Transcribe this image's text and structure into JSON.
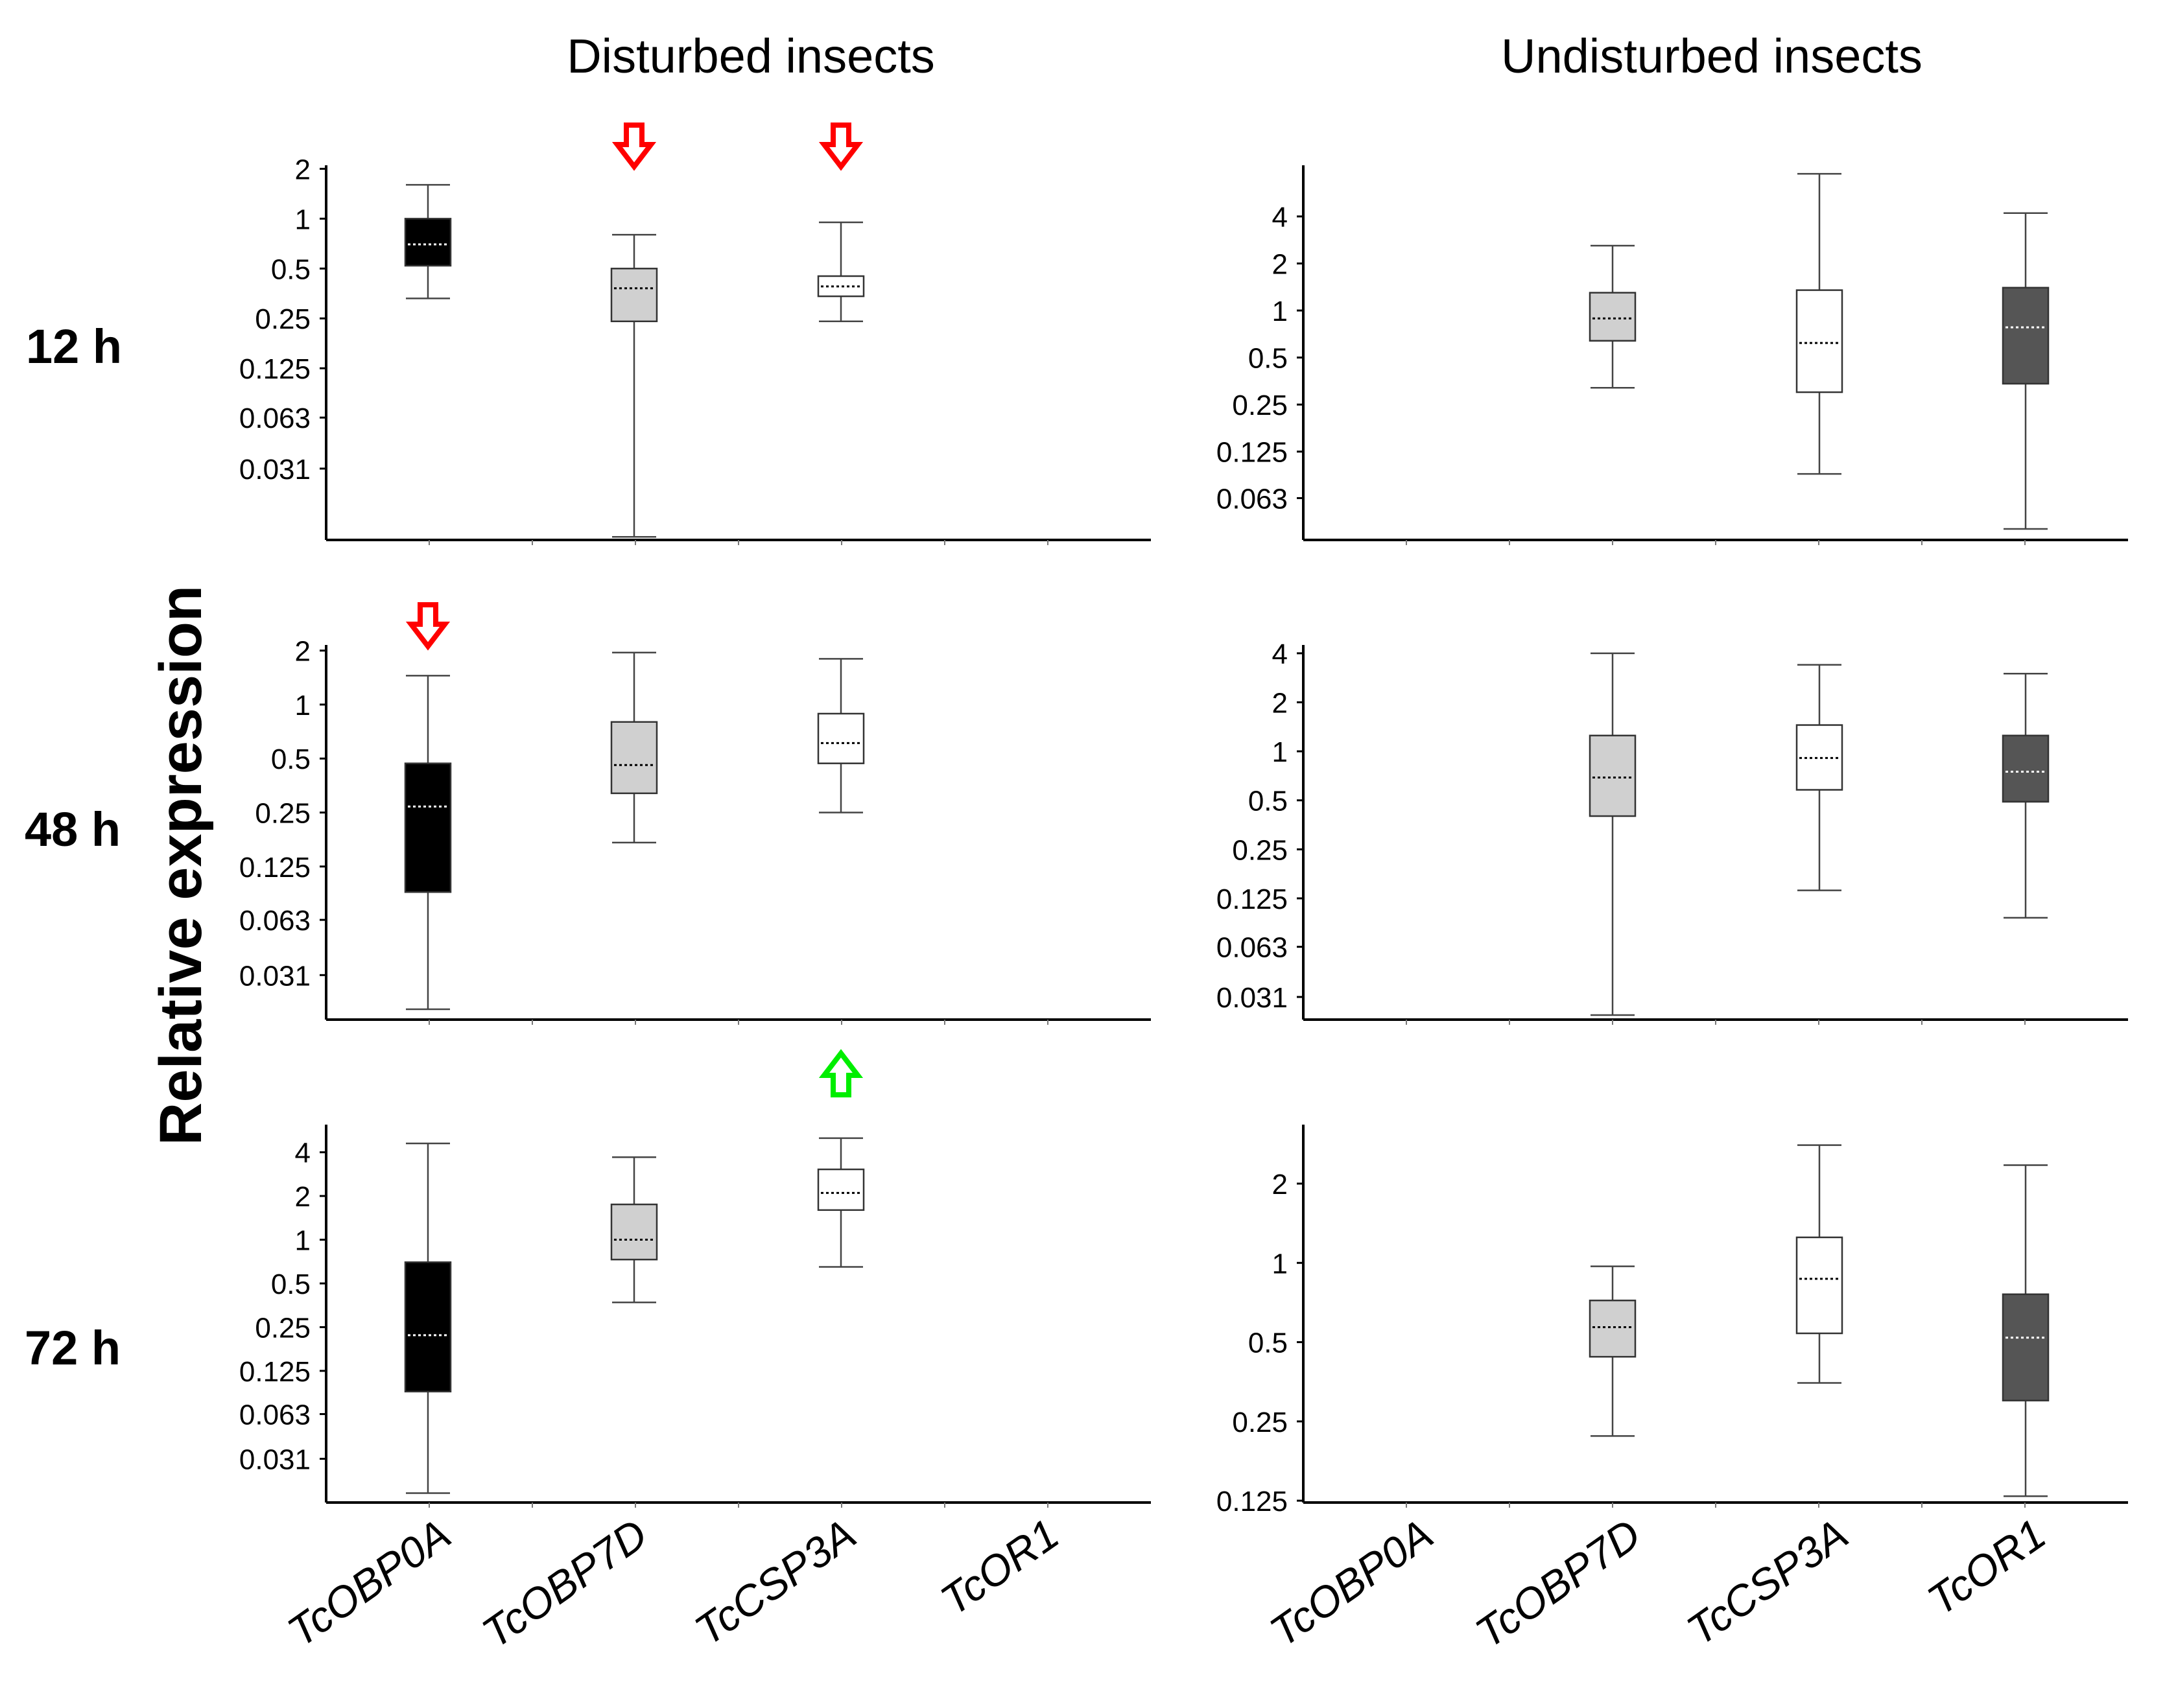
{
  "figure": {
    "ylabel": "Relative expression",
    "conditions": [
      "Disturbed insects",
      "Undisturbed insects"
    ],
    "time_labels": [
      "12 h",
      "48 h",
      "72 h"
    ],
    "genes": [
      "TcOBP0A",
      "TcOBP7D",
      "TcCSP3A",
      "TcOR1"
    ],
    "colors": {
      "TcOBP0A": "#000000",
      "TcOBP7D": "#d0d0d0",
      "TcCSP3A": "#ffffff",
      "TcOR1": "#555555",
      "arrow_down": "#ff0000",
      "arrow_up": "#00ee00",
      "axis": "#000000"
    }
  },
  "chart_data": [
    {
      "type": "box",
      "scale": "log2",
      "condition": "Disturbed insects",
      "time": "12 h",
      "y_ticks": [
        2,
        1,
        0.5,
        0.25,
        0.125,
        0.063,
        0.031
      ],
      "ylim": [
        0.0115,
        2.1
      ],
      "boxes": [
        {
          "gene": "TcOBP0A",
          "min": 0.33,
          "q1": 0.52,
          "median": 0.7,
          "q3": 1.0,
          "max": 1.6
        },
        {
          "gene": "TcOBP7D",
          "min": 0.012,
          "q1": 0.24,
          "median": 0.38,
          "q3": 0.5,
          "max": 0.8
        },
        {
          "gene": "TcCSP3A",
          "min": 0.24,
          "q1": 0.34,
          "median": 0.39,
          "q3": 0.45,
          "max": 0.95
        }
      ],
      "arrows": [
        {
          "gene": "TcOBP7D",
          "direction": "down"
        },
        {
          "gene": "TcCSP3A",
          "direction": "down"
        }
      ]
    },
    {
      "type": "box",
      "scale": "log2",
      "condition": "Undisturbed insects",
      "time": "12 h",
      "y_ticks": [
        4,
        2,
        1,
        0.5,
        0.25,
        0.125,
        0.063
      ],
      "ylim": [
        0.034,
        8.5
      ],
      "boxes": [
        {
          "gene": "TcOBP7D",
          "min": 0.32,
          "q1": 0.64,
          "median": 0.89,
          "q3": 1.3,
          "max": 2.6
        },
        {
          "gene": "TcCSP3A",
          "min": 0.09,
          "q1": 0.3,
          "median": 0.62,
          "q3": 1.35,
          "max": 7.5
        },
        {
          "gene": "TcOR1",
          "min": 0.04,
          "q1": 0.34,
          "median": 0.78,
          "q3": 1.4,
          "max": 4.2
        }
      ],
      "arrows": []
    },
    {
      "type": "box",
      "scale": "log2",
      "condition": "Disturbed insects",
      "time": "48 h",
      "y_ticks": [
        2,
        1,
        0.5,
        0.25,
        0.125,
        0.063,
        0.031
      ],
      "ylim": [
        0.0175,
        2.15
      ],
      "boxes": [
        {
          "gene": "TcOBP0A",
          "min": 0.02,
          "q1": 0.09,
          "median": 0.27,
          "q3": 0.47,
          "max": 1.45
        },
        {
          "gene": "TcOBP7D",
          "min": 0.17,
          "q1": 0.32,
          "median": 0.46,
          "q3": 0.8,
          "max": 1.95
        },
        {
          "gene": "TcCSP3A",
          "min": 0.25,
          "q1": 0.47,
          "median": 0.61,
          "q3": 0.89,
          "max": 1.8
        }
      ],
      "arrows": [
        {
          "gene": "TcOBP0A",
          "direction": "down"
        }
      ]
    },
    {
      "type": "box",
      "scale": "log2",
      "condition": "Undisturbed insects",
      "time": "48 h",
      "y_ticks": [
        4,
        2,
        1,
        0.5,
        0.25,
        0.125,
        0.063,
        0.031
      ],
      "ylim": [
        0.0225,
        4.5
      ],
      "boxes": [
        {
          "gene": "TcOBP7D",
          "min": 0.024,
          "q1": 0.4,
          "median": 0.69,
          "q3": 1.25,
          "max": 4.0
        },
        {
          "gene": "TcCSP3A",
          "min": 0.14,
          "q1": 0.58,
          "median": 0.91,
          "q3": 1.45,
          "max": 3.4
        },
        {
          "gene": "TcOR1",
          "min": 0.095,
          "q1": 0.49,
          "median": 0.75,
          "q3": 1.25,
          "max": 3.0
        }
      ],
      "arrows": []
    },
    {
      "type": "box",
      "scale": "log2",
      "condition": "Disturbed insects",
      "time": "72 h",
      "y_ticks": [
        4,
        2,
        1,
        0.5,
        0.25,
        0.125,
        0.063,
        0.031
      ],
      "ylim": [
        0.0155,
        6.2
      ],
      "boxes": [
        {
          "gene": "TcOBP0A",
          "min": 0.018,
          "q1": 0.09,
          "median": 0.22,
          "q3": 0.7,
          "max": 4.6
        },
        {
          "gene": "TcOBP7D",
          "min": 0.37,
          "q1": 0.73,
          "median": 1.0,
          "q3": 1.75,
          "max": 3.7
        },
        {
          "gene": "TcCSP3A",
          "min": 0.65,
          "q1": 1.6,
          "median": 2.1,
          "q3": 3.05,
          "max": 5.0
        }
      ],
      "arrows": [
        {
          "gene": "TcCSP3A",
          "direction": "up"
        }
      ]
    },
    {
      "type": "box",
      "scale": "log2",
      "condition": "Undisturbed insects",
      "time": "72 h",
      "y_ticks": [
        2,
        1,
        0.5,
        0.25,
        0.125
      ],
      "ylim": [
        0.123,
        3.35
      ],
      "boxes": [
        {
          "gene": "TcOBP7D",
          "min": 0.22,
          "q1": 0.44,
          "median": 0.57,
          "q3": 0.72,
          "max": 0.97
        },
        {
          "gene": "TcCSP3A",
          "min": 0.35,
          "q1": 0.54,
          "median": 0.87,
          "q3": 1.25,
          "max": 2.8
        },
        {
          "gene": "TcOR1",
          "min": 0.13,
          "q1": 0.3,
          "median": 0.52,
          "q3": 0.76,
          "max": 2.35
        }
      ],
      "arrows": []
    }
  ]
}
